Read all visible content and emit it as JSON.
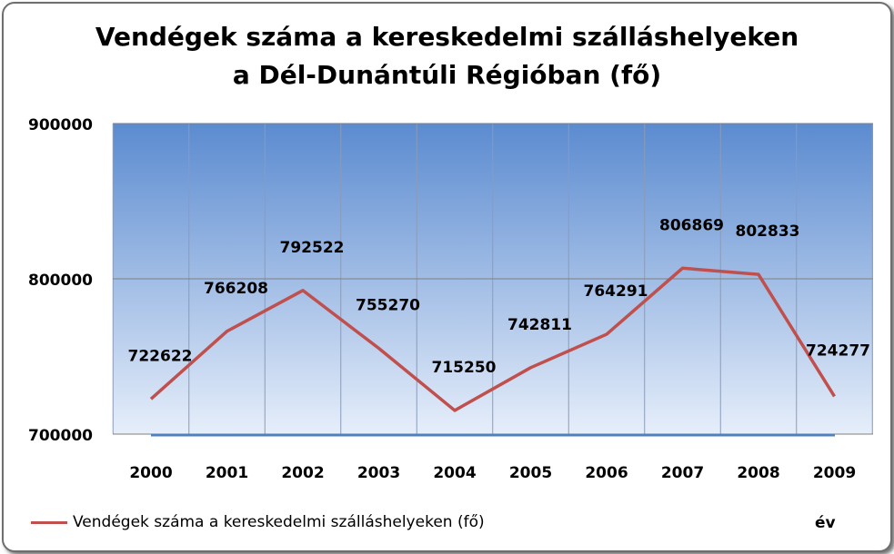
{
  "colors": {
    "series_line": "#c0504d",
    "plot_top": "#5b8bd0",
    "plot_bottom": "#e6eefa",
    "baseline": "#4f81bd"
  },
  "chart_data": {
    "type": "line",
    "title_lines": [
      "Vendégek száma a kereskedelmi szálláshelyeken",
      "a Dél-Dunántúli Régióban (fő)"
    ],
    "categories": [
      "2000",
      "2001",
      "2002",
      "2003",
      "2004",
      "2005",
      "2006",
      "2007",
      "2008",
      "2009"
    ],
    "series": [
      {
        "name": "Vendégek száma a kereskedelmi szálláshelyeken (fő)",
        "values": [
          722622,
          766208,
          792522,
          755270,
          715250,
          742811,
          764291,
          806869,
          802833,
          724277
        ],
        "data_labels": [
          "722622",
          "766208",
          "792522",
          "755270",
          "715250",
          "742811",
          "764291",
          "806869",
          "802833",
          "724277"
        ]
      }
    ],
    "ylim": [
      700000,
      900000
    ],
    "y_ticks": [
      700000,
      800000,
      900000
    ],
    "y_tick_labels": [
      "700000",
      "800000",
      "900000"
    ],
    "xlabel": "év",
    "ylabel": "",
    "grid": true,
    "legend_position": "bottom-left"
  }
}
